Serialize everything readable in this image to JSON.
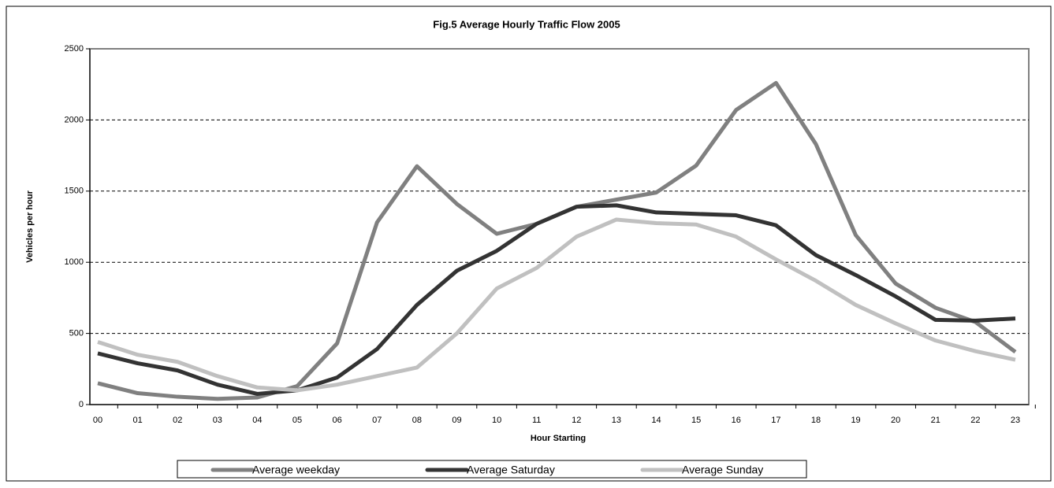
{
  "chart_data": {
    "type": "line",
    "title": "Fig.5 Average Hourly Traffic Flow 2005",
    "x_label": "Hour Starting",
    "y_label": "Vehicles per hour",
    "categories": [
      "00",
      "01",
      "02",
      "03",
      "04",
      "05",
      "06",
      "07",
      "08",
      "09",
      "10",
      "11",
      "12",
      "13",
      "14",
      "15",
      "16",
      "17",
      "18",
      "19",
      "20",
      "21",
      "22",
      "23"
    ],
    "series": [
      {
        "name": "Average weekday",
        "color": "#808080",
        "values": [
          150,
          80,
          55,
          40,
          50,
          130,
          430,
          1280,
          1675,
          1410,
          1200,
          1270,
          1390,
          1440,
          1490,
          1680,
          2070,
          2260,
          1830,
          1190,
          850,
          680,
          580,
          370
        ]
      },
      {
        "name": "Average Saturday",
        "color": "#333333",
        "values": [
          360,
          290,
          240,
          140,
          75,
          100,
          190,
          390,
          700,
          940,
          1080,
          1270,
          1390,
          1400,
          1350,
          1340,
          1330,
          1260,
          1050,
          910,
          760,
          595,
          590,
          605
        ]
      },
      {
        "name": "Average Sunday",
        "color": "#c0c0c0",
        "values": [
          440,
          350,
          300,
          200,
          120,
          100,
          140,
          200,
          260,
          500,
          815,
          960,
          1180,
          1300,
          1275,
          1265,
          1180,
          1020,
          870,
          700,
          570,
          450,
          375,
          315
        ]
      }
    ],
    "ylim": [
      0,
      2500
    ],
    "yticks": [
      0,
      500,
      1000,
      1500,
      2000,
      2500
    ],
    "grid": true,
    "legend": "bottom"
  }
}
